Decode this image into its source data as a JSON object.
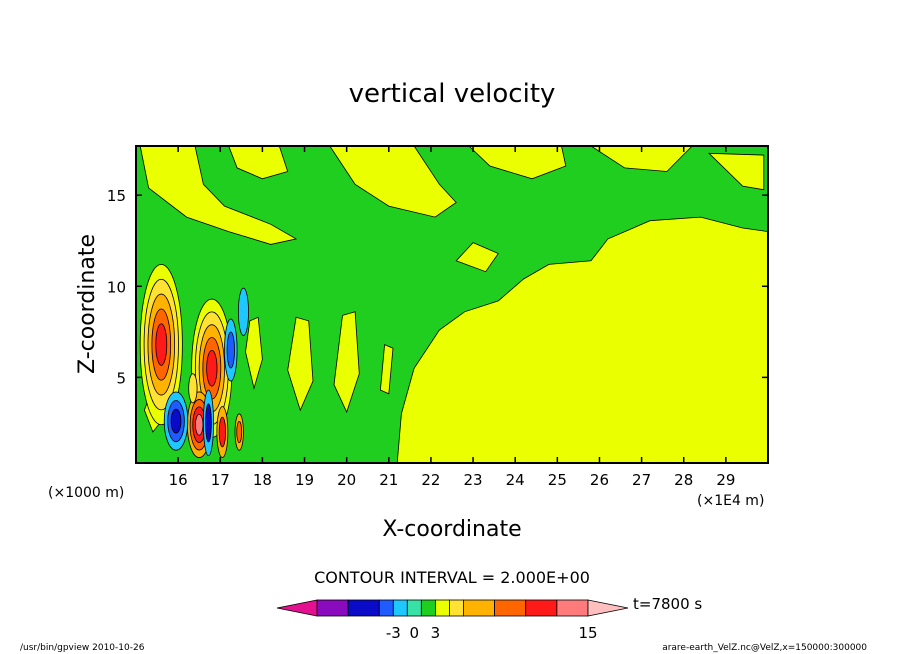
{
  "chart_data": {
    "type": "heatmap",
    "title": "vertical velocity",
    "xlabel": "X-coordinate",
    "ylabel": "Z-coordinate",
    "x_ticks": [
      "16",
      "17",
      "18",
      "19",
      "20",
      "21",
      "22",
      "23",
      "24",
      "25",
      "26",
      "27",
      "28",
      "29"
    ],
    "y_ticks": [
      "5",
      "10",
      "15"
    ],
    "xlim": [
      15.0,
      30.0
    ],
    "ylim": [
      0.3,
      17.7
    ],
    "x_unit_left": "(×1000 m)",
    "x_unit_right": "(×1E4 m)",
    "contour_interval_text": "CONTOUR INTERVAL = 2.000E+00",
    "time_label": "t=7800 s",
    "colorbar_labels": [
      "-3",
      "0",
      "3",
      "15"
    ],
    "footer_left": "/usr/bin/gpview   2010-10-26",
    "footer_right": "arare-earth_VelZ.nc@VelZ,x=150000:300000",
    "levels": [
      -9,
      -7,
      -5,
      -3,
      -1,
      1,
      3,
      5,
      7,
      9,
      11,
      13,
      15
    ],
    "colors": {
      "below": "#e3108f",
      "bands": [
        "#8a0bbd",
        "#0a0ac9",
        "#1e5cff",
        "#1ec8ff",
        "#38e2a4",
        "#1fce1f",
        "#eaff00",
        "#ffe233",
        "#ffb300",
        "#ff6600",
        "#ff1a1a",
        "#ff7b7b"
      ],
      "above": "#ffbfbf",
      "background_band": "#1fce1f",
      "positive_band": "#eaff00"
    }
  }
}
